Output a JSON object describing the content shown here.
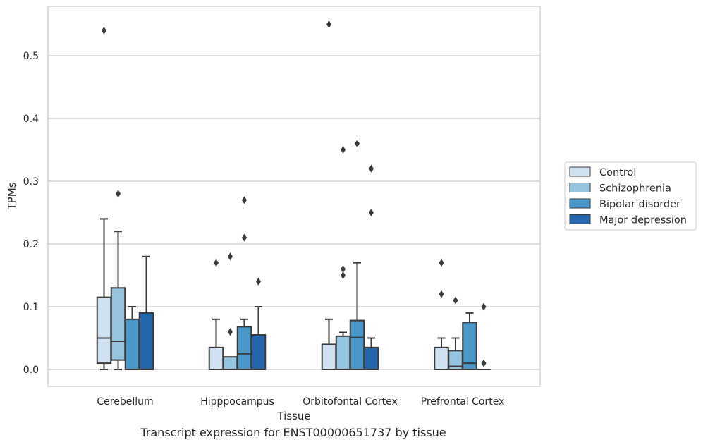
{
  "caption": "Transcript expression for ENST00000651737 by tissue",
  "chart_data": {
    "type": "box",
    "xlabel": "Tissue",
    "ylabel": "TPMs",
    "ylim": [
      -0.027,
      0.58
    ],
    "yticks": [
      0.0,
      0.1,
      0.2,
      0.3,
      0.4,
      0.5
    ],
    "ytick_labels": [
      "0.0",
      "0.1",
      "0.2",
      "0.3",
      "0.4",
      "0.5"
    ],
    "grid": "horizontal",
    "legend_position": "right",
    "categories": [
      "Cerebellum",
      "Hipppocampus",
      "Orbitofontal Cortex",
      "Prefrontal Cortex"
    ],
    "colors": {
      "Control": "#d0e1f2",
      "Schizophrenia": "#94c4df",
      "Bipolar disorder": "#4a98c9",
      "Major depression": "#2465ab",
      "edge": "#3a3a3a",
      "grid": "#cccccc",
      "frame": "#cccccc"
    },
    "series": [
      {
        "name": "Control",
        "boxes": [
          {
            "whisker_low": 0.0,
            "q1": 0.01,
            "median": 0.05,
            "q3": 0.115,
            "whisker_high": 0.24,
            "outliers": [
              0.54
            ]
          },
          {
            "whisker_low": 0.0,
            "q1": 0.0,
            "median": 0.0,
            "q3": 0.035,
            "whisker_high": 0.08,
            "outliers": [
              0.17
            ]
          },
          {
            "whisker_low": 0.0,
            "q1": 0.0,
            "median": 0.0,
            "q3": 0.04,
            "whisker_high": 0.08,
            "outliers": [
              0.55
            ]
          },
          {
            "whisker_low": 0.0,
            "q1": 0.0,
            "median": 0.0,
            "q3": 0.035,
            "whisker_high": 0.05,
            "outliers": [
              0.17,
              0.12
            ]
          }
        ]
      },
      {
        "name": "Schizophrenia",
        "boxes": [
          {
            "whisker_low": 0.0,
            "q1": 0.015,
            "median": 0.045,
            "q3": 0.13,
            "whisker_high": 0.22,
            "outliers": [
              0.28
            ]
          },
          {
            "whisker_low": 0.0,
            "q1": 0.0,
            "median": 0.0,
            "q3": 0.02,
            "whisker_high": 0.02,
            "outliers": [
              0.18,
              0.06
            ]
          },
          {
            "whisker_low": 0.0,
            "q1": 0.0,
            "median": 0.0,
            "q3": 0.053,
            "whisker_high": 0.059,
            "outliers": [
              0.35,
              0.16,
              0.15
            ]
          },
          {
            "whisker_low": 0.0,
            "q1": 0.0,
            "median": 0.005,
            "q3": 0.03,
            "whisker_high": 0.05,
            "outliers": [
              0.11
            ]
          }
        ]
      },
      {
        "name": "Bipolar disorder",
        "boxes": [
          {
            "whisker_low": 0.0,
            "q1": 0.0,
            "median": 0.0,
            "q3": 0.08,
            "whisker_high": 0.1,
            "outliers": []
          },
          {
            "whisker_low": 0.0,
            "q1": 0.0,
            "median": 0.025,
            "q3": 0.068,
            "whisker_high": 0.08,
            "outliers": [
              0.27,
              0.21
            ]
          },
          {
            "whisker_low": 0.0,
            "q1": 0.0,
            "median": 0.051,
            "q3": 0.078,
            "whisker_high": 0.17,
            "outliers": [
              0.36
            ]
          },
          {
            "whisker_low": 0.0,
            "q1": 0.0,
            "median": 0.01,
            "q3": 0.075,
            "whisker_high": 0.09,
            "outliers": []
          }
        ]
      },
      {
        "name": "Major depression",
        "boxes": [
          {
            "whisker_low": 0.0,
            "q1": 0.0,
            "median": 0.0,
            "q3": 0.09,
            "whisker_high": 0.18,
            "outliers": []
          },
          {
            "whisker_low": 0.0,
            "q1": 0.0,
            "median": 0.0,
            "q3": 0.055,
            "whisker_high": 0.1,
            "outliers": [
              0.14
            ]
          },
          {
            "whisker_low": 0.0,
            "q1": 0.0,
            "median": 0.0,
            "q3": 0.035,
            "whisker_high": 0.05,
            "outliers": [
              0.32,
              0.25
            ]
          },
          {
            "whisker_low": 0.0,
            "q1": 0.0,
            "median": 0.0,
            "q3": 0.0,
            "whisker_high": 0.0,
            "outliers": [
              0.1,
              0.01
            ]
          }
        ]
      }
    ]
  }
}
